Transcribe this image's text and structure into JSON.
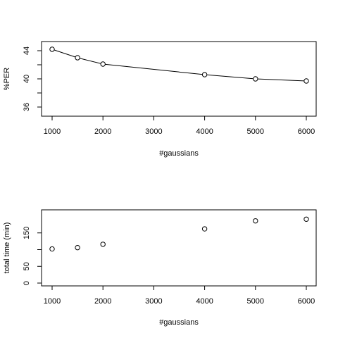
{
  "chart_data": [
    {
      "type": "line",
      "title": "",
      "xlabel": "#gaussians",
      "ylabel": "%PER",
      "x": [
        1000,
        1500,
        2000,
        4000,
        5000,
        6000
      ],
      "y": [
        44.2,
        43.0,
        42.1,
        40.6,
        40.0,
        39.7
      ],
      "xlim": [
        1000,
        6000
      ],
      "ylim": [
        36,
        44
      ],
      "xticks": [
        1000,
        2000,
        3000,
        4000,
        5000,
        6000
      ],
      "yticks": [
        36,
        40,
        44
      ],
      "yticks_unlabeled": [
        38,
        42
      ],
      "markers": "open-circle",
      "line": true,
      "grid": false,
      "legend": "none"
    },
    {
      "type": "scatter",
      "title": "",
      "xlabel": "#gaussians",
      "ylabel": "total time (min)",
      "x": [
        1000,
        1500,
        2000,
        4000,
        5000,
        6000
      ],
      "y": [
        102,
        106,
        116,
        162,
        186,
        191
      ],
      "xlim": [
        1000,
        6000
      ],
      "ylim": [
        0,
        200
      ],
      "xticks": [
        1000,
        2000,
        3000,
        4000,
        5000,
        6000
      ],
      "yticks": [
        0,
        50,
        150
      ],
      "yticks_unlabeled": [
        100
      ],
      "markers": "open-circle",
      "line": false,
      "grid": false,
      "legend": "none"
    }
  ]
}
